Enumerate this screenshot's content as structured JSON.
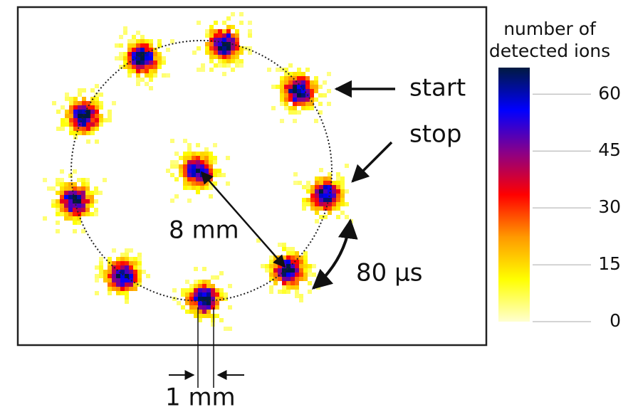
{
  "chart_data": {
    "type": "ion-image",
    "colorbar_label": [
      "number of",
      "detected ions"
    ],
    "clim": [
      0,
      67
    ],
    "colorbar_ticks": [
      0,
      15,
      30,
      45,
      60
    ],
    "colormap": [
      "#ffffd0",
      "#ffff00",
      "#ff9900",
      "#ff0000",
      "#8a0088",
      "#0000ff",
      "#001a40"
    ],
    "annotations": {
      "start": "start",
      "stop": "stop",
      "radius": "8 mm",
      "interval": "80 μs",
      "spot_size": "1 mm"
    }
  }
}
